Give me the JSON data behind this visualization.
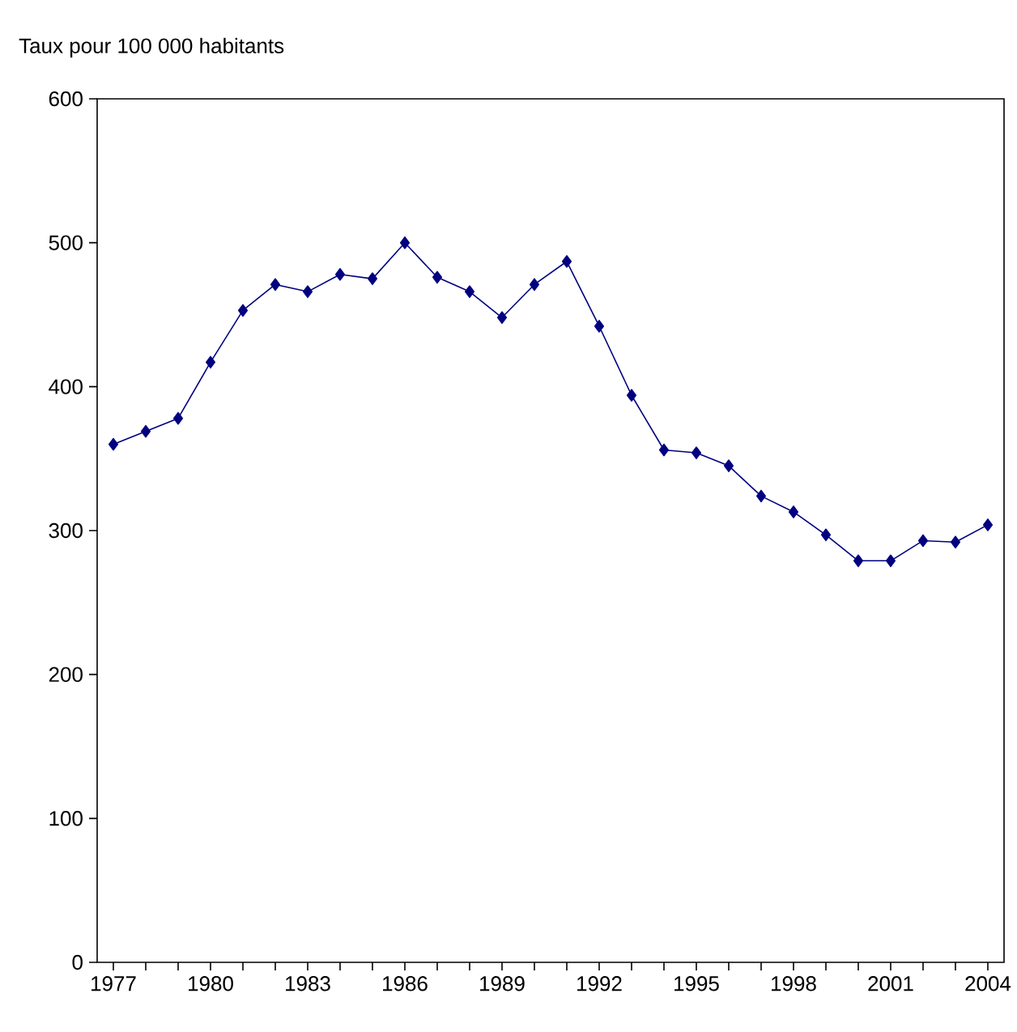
{
  "chart_data": {
    "type": "line",
    "ylabel": "Taux pour 100 000 habitants",
    "categories": [
      "1977",
      null,
      null,
      "1980",
      null,
      null,
      "1983",
      null,
      null,
      "1986",
      null,
      null,
      "1989",
      null,
      null,
      "1992",
      null,
      null,
      "1995",
      null,
      null,
      "1998",
      null,
      null,
      "2001",
      null,
      null,
      "2004"
    ],
    "series": [
      {
        "color": "#000080",
        "values": [
          360,
          369,
          378,
          417,
          453,
          471,
          466,
          478,
          475,
          500,
          476,
          466,
          448,
          471,
          487,
          442,
          394,
          356,
          354,
          345,
          324,
          313,
          297,
          279,
          279,
          293,
          292,
          304
        ]
      }
    ],
    "ylim": [
      0,
      600
    ],
    "yticks": [
      0,
      100,
      200,
      300,
      400,
      500,
      600
    ],
    "marker": "diamond",
    "line_style": "solid",
    "grid": false
  }
}
